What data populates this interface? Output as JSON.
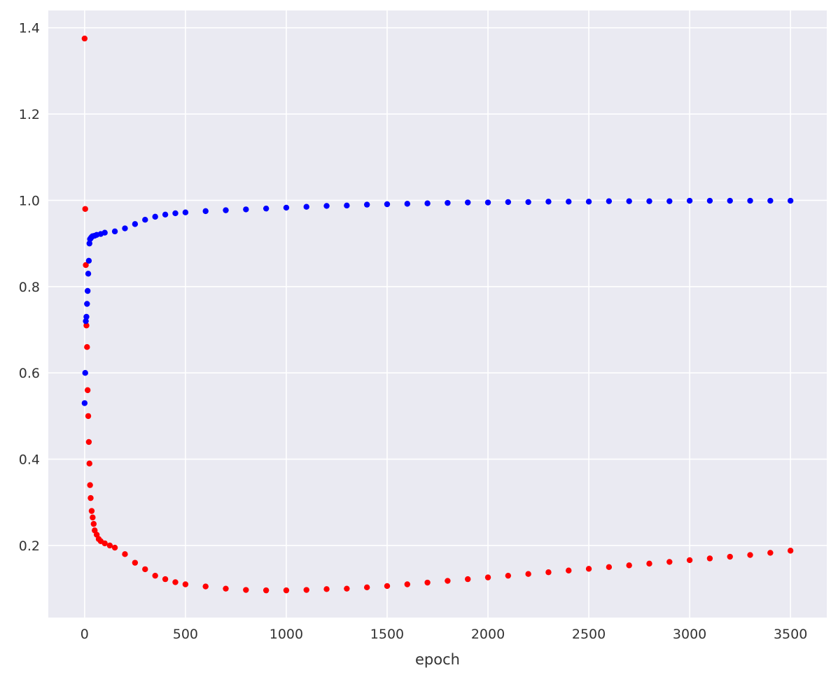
{
  "chart_data": {
    "type": "scatter",
    "xlabel": "epoch",
    "ylabel": "",
    "xlim": [
      -180,
      3680
    ],
    "ylim": [
      0.033,
      1.44
    ],
    "xticks": [
      0,
      500,
      1000,
      1500,
      2000,
      2500,
      3000,
      3500
    ],
    "xtick_labels": [
      "0",
      "500",
      "1000",
      "1500",
      "2000",
      "2500",
      "3000",
      "3500"
    ],
    "yticks": [
      0.2,
      0.4,
      0.6,
      0.8,
      1.0,
      1.2,
      1.4
    ],
    "ytick_labels": [
      "0.2",
      "0.4",
      "0.6",
      "0.8",
      "1.0",
      "1.2",
      "1.4"
    ],
    "grid": true,
    "background": "#eaeaf2",
    "series": [
      {
        "color": "#ff0000",
        "x": [
          0,
          3,
          6,
          9,
          12,
          15,
          18,
          21,
          24,
          27,
          30,
          35,
          40,
          45,
          50,
          60,
          70,
          80,
          100,
          125,
          150,
          200,
          250,
          300,
          350,
          400,
          450,
          500,
          600,
          700,
          800,
          900,
          1000,
          1100,
          1200,
          1300,
          1400,
          1500,
          1600,
          1700,
          1800,
          1900,
          2000,
          2100,
          2200,
          2300,
          2400,
          2500,
          2600,
          2700,
          2800,
          2900,
          3000,
          3100,
          3200,
          3300,
          3400,
          3500
        ],
        "y": [
          1.375,
          0.98,
          0.85,
          0.71,
          0.66,
          0.56,
          0.5,
          0.44,
          0.39,
          0.34,
          0.31,
          0.28,
          0.265,
          0.25,
          0.235,
          0.225,
          0.215,
          0.21,
          0.205,
          0.2,
          0.195,
          0.18,
          0.16,
          0.145,
          0.13,
          0.122,
          0.115,
          0.11,
          0.105,
          0.1,
          0.097,
          0.096,
          0.096,
          0.097,
          0.099,
          0.1,
          0.103,
          0.106,
          0.11,
          0.114,
          0.118,
          0.122,
          0.126,
          0.13,
          0.134,
          0.138,
          0.142,
          0.146,
          0.15,
          0.154,
          0.158,
          0.162,
          0.166,
          0.17,
          0.174,
          0.178,
          0.183,
          0.188
        ]
      },
      {
        "color": "#0000ff",
        "x": [
          0,
          3,
          6,
          9,
          12,
          15,
          18,
          21,
          24,
          27,
          30,
          35,
          40,
          50,
          60,
          80,
          100,
          150,
          200,
          250,
          300,
          350,
          400,
          450,
          500,
          600,
          700,
          800,
          900,
          1000,
          1100,
          1200,
          1300,
          1400,
          1500,
          1600,
          1700,
          1800,
          1900,
          2000,
          2100,
          2200,
          2300,
          2400,
          2500,
          2600,
          2700,
          2800,
          2900,
          3000,
          3100,
          3200,
          3300,
          3400,
          3500
        ],
        "y": [
          0.53,
          0.6,
          0.72,
          0.73,
          0.76,
          0.79,
          0.83,
          0.86,
          0.9,
          0.91,
          0.912,
          0.915,
          0.917,
          0.918,
          0.92,
          0.922,
          0.925,
          0.928,
          0.935,
          0.945,
          0.955,
          0.962,
          0.967,
          0.97,
          0.972,
          0.975,
          0.977,
          0.979,
          0.981,
          0.983,
          0.985,
          0.987,
          0.988,
          0.99,
          0.991,
          0.992,
          0.993,
          0.994,
          0.995,
          0.995,
          0.996,
          0.996,
          0.997,
          0.997,
          0.997,
          0.998,
          0.998,
          0.998,
          0.998,
          0.999,
          0.999,
          0.999,
          0.999,
          0.999,
          0.999
        ]
      }
    ]
  }
}
